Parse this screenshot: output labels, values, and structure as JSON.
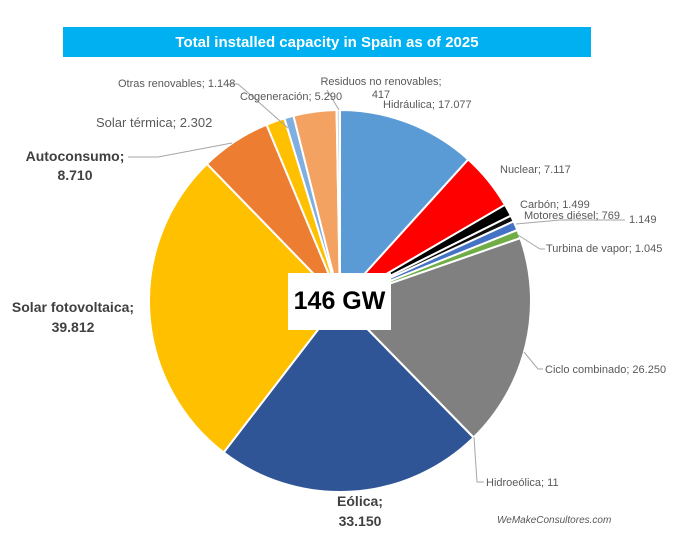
{
  "chart_data": {
    "type": "pie",
    "title": "Total installed capacity in Spain as of 2025",
    "unit": "MW",
    "total_label": "146 GW",
    "start_angle_deg": 0,
    "direction": "clockwise",
    "slices": [
      {
        "name": "Hidráulica",
        "value": 17077,
        "label": "Hidráulica; 17.077",
        "color": "#5B9BD5"
      },
      {
        "name": "Nuclear",
        "value": 7117,
        "label": "Nuclear; 7.117",
        "color": "#FF0000"
      },
      {
        "name": "Carbón",
        "value": 1499,
        "label": "Carbón; 1.499",
        "color": "#000000"
      },
      {
        "name": "Motores diésel",
        "value": 769,
        "label": "Motores diésel; 769",
        "color": "#0D0D0D"
      },
      {
        "name": "",
        "value": 1149,
        "label": "1.149",
        "color": "#4472C4"
      },
      {
        "name": "Turbina de vapor",
        "value": 1045,
        "label": "Turbina de vapor; 1.045",
        "color": "#70AD47"
      },
      {
        "name": "Ciclo combinado",
        "value": 26250,
        "label": "Ciclo combinado; 26.250",
        "color": "#808080"
      },
      {
        "name": "Hidroeólica",
        "value": 11,
        "label": "Hidroeólica; 11",
        "color": "#A5A5A5"
      },
      {
        "name": "Eólica",
        "value": 33150,
        "label": "Eólica; 33.150",
        "color": "#2F5597"
      },
      {
        "name": "Solar fotovoltaica",
        "value": 39812,
        "label": "Solar fotovoltaica; 39.812",
        "color": "#FFC000"
      },
      {
        "name": "Autoconsumo",
        "value": 8710,
        "label": "Autoconsumo; 8.710",
        "color": "#ED7D31"
      },
      {
        "name": "Solar térmica",
        "value": 2302,
        "label": "Solar térmica; 2.302",
        "color": "#FFC000"
      },
      {
        "name": "Otras renovables",
        "value": 1148,
        "label": "Otras renovables; 1.148",
        "color": "#7FAEE0"
      },
      {
        "name": "Cogeneración",
        "value": 5290,
        "label": "Cogeneración; 5.290",
        "color": "#F4A261"
      },
      {
        "name": "Residuos no renovables",
        "value": 417,
        "label": "Residuos no renovables; 417",
        "color": "#D9D9D9"
      }
    ]
  },
  "labels": {
    "l0": "Hidráulica; 17.077",
    "l1": "Nuclear; 7.117",
    "l2": "Carbón; 1.499",
    "l3": "Motores diésel; 769",
    "l4": "1.149",
    "l5": "Turbina de vapor; 1.045",
    "l6": "Ciclo combinado; 26.250",
    "l7": "Hidroeólica; 11",
    "l8a": "Eólica;",
    "l8b": "33.150",
    "l9a": "Solar fotovoltaica;",
    "l9b": "39.812",
    "l10a": "Autoconsumo;",
    "l10b": "8.710",
    "l11": "Solar térmica; 2.302",
    "l12": "Otras renovables; 1.148",
    "l13": "Cogeneración; 5.290",
    "l14a": "Residuos no renovables;",
    "l14b": "417"
  },
  "source": "WeMakeConsultores.com"
}
